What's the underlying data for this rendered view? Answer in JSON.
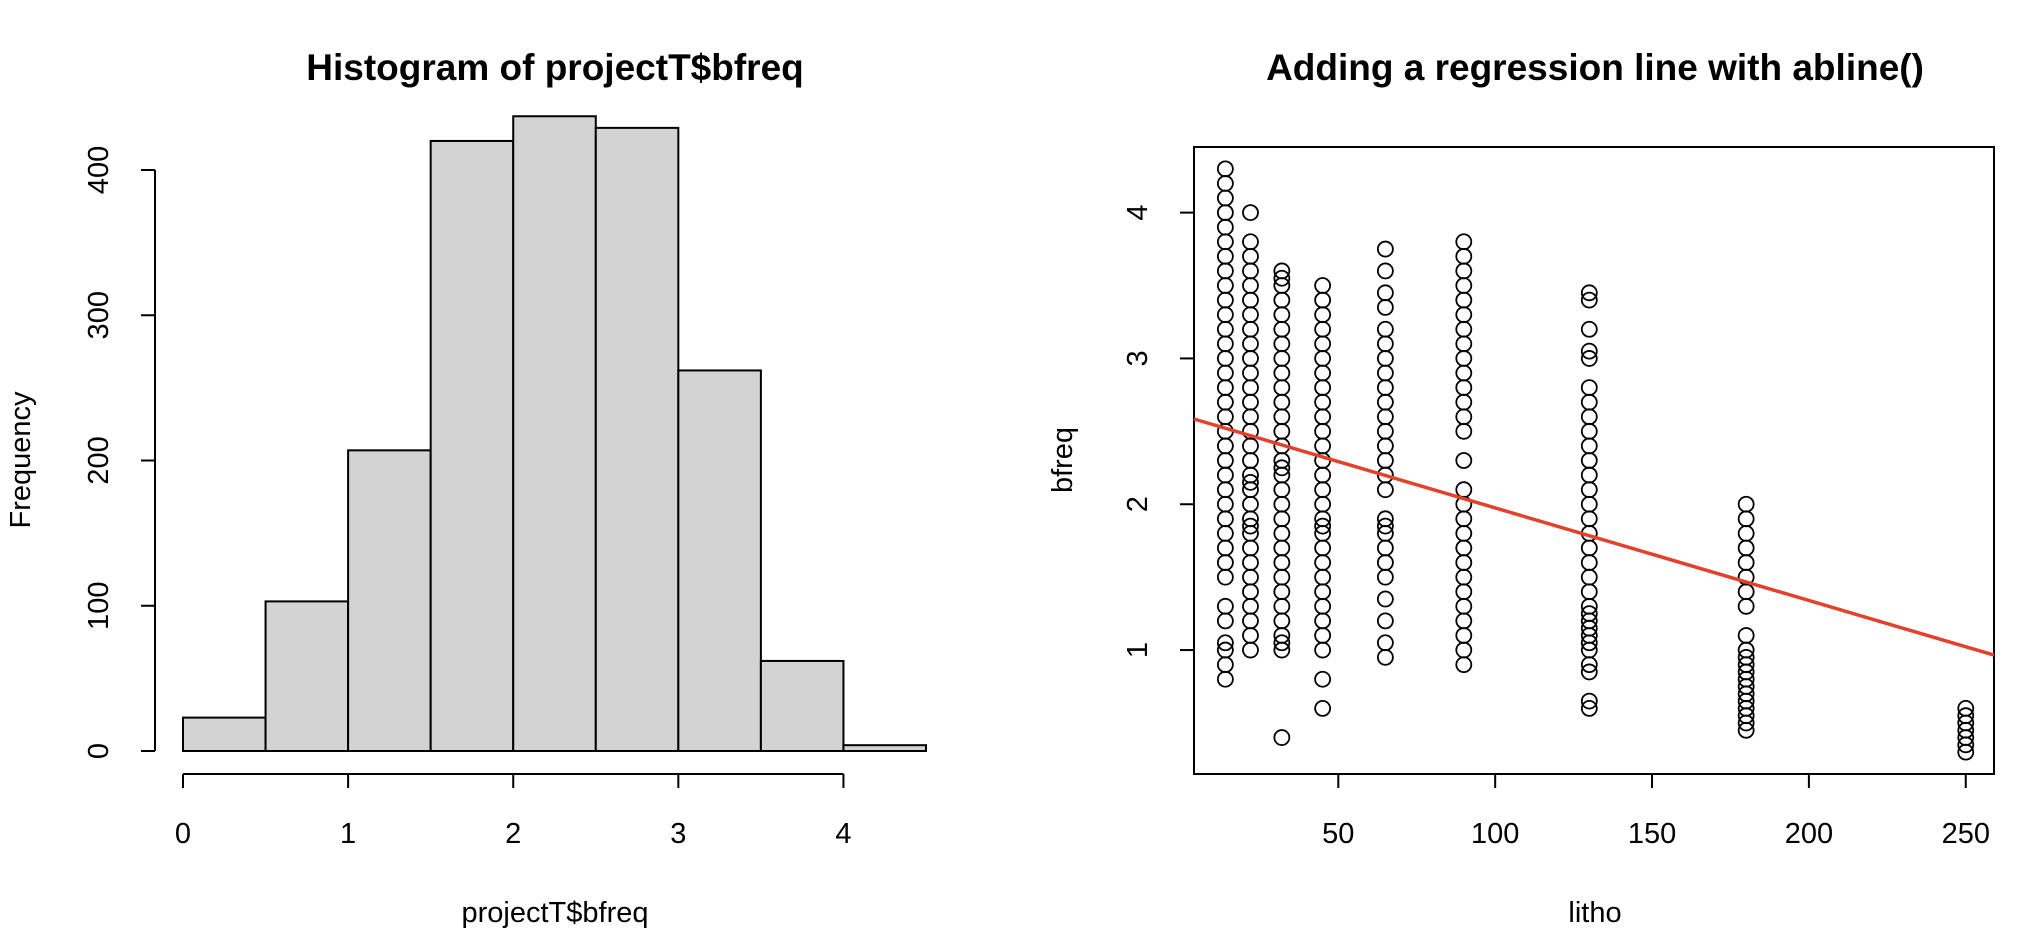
{
  "chart_data": [
    {
      "type": "bar",
      "title": "Histogram of projectT$bfreq",
      "xlabel": "projectT$bfreq",
      "ylabel": "Frequency",
      "bin_edges": [
        0,
        0.5,
        1,
        1.5,
        2,
        2.5,
        3,
        3.5,
        4,
        4.5
      ],
      "values": [
        23,
        103,
        207,
        420,
        437,
        429,
        262,
        62,
        4
      ],
      "xticks": [
        0,
        1,
        2,
        3,
        4
      ],
      "yticks": [
        0,
        100,
        200,
        300,
        400
      ],
      "xlim": [
        0,
        4.5
      ],
      "ylim": [
        0,
        437
      ],
      "bar_color": "#d3d3d3",
      "grid": false
    },
    {
      "type": "scatter",
      "title": "Adding a regression line with abline()",
      "xlabel": "litho",
      "ylabel": "bfreq",
      "xticks": [
        50,
        100,
        150,
        200,
        250
      ],
      "yticks": [
        1,
        2,
        3,
        4
      ],
      "xlim": [
        4,
        259
      ],
      "ylim": [
        0.15,
        4.45
      ],
      "groups": [
        {
          "x": 14,
          "y": [
            0.8,
            0.9,
            1.0,
            1.05,
            1.2,
            1.3,
            1.5,
            1.6,
            1.7,
            1.8,
            1.9,
            2.0,
            2.1,
            2.2,
            2.3,
            2.4,
            2.5,
            2.6,
            2.7,
            2.8,
            2.9,
            3.0,
            3.1,
            3.2,
            3.3,
            3.4,
            3.5,
            3.6,
            3.7,
            3.8,
            3.9,
            4.0,
            4.1,
            4.2,
            4.3
          ]
        },
        {
          "x": 22,
          "y": [
            1.0,
            1.1,
            1.2,
            1.3,
            1.4,
            1.5,
            1.6,
            1.7,
            1.8,
            1.85,
            1.9,
            2.0,
            2.1,
            2.15,
            2.2,
            2.3,
            2.4,
            2.5,
            2.6,
            2.7,
            2.8,
            2.9,
            3.0,
            3.1,
            3.2,
            3.3,
            3.4,
            3.5,
            3.6,
            3.7,
            3.8,
            4.0
          ]
        },
        {
          "x": 32,
          "y": [
            0.4,
            1.0,
            1.05,
            1.1,
            1.2,
            1.3,
            1.4,
            1.5,
            1.6,
            1.7,
            1.8,
            1.9,
            2.0,
            2.1,
            2.2,
            2.25,
            2.3,
            2.4,
            2.5,
            2.6,
            2.7,
            2.8,
            2.9,
            3.0,
            3.1,
            3.2,
            3.3,
            3.4,
            3.5,
            3.55,
            3.6
          ]
        },
        {
          "x": 45,
          "y": [
            0.6,
            0.8,
            1.0,
            1.1,
            1.2,
            1.3,
            1.4,
            1.5,
            1.6,
            1.7,
            1.8,
            1.85,
            1.9,
            2.0,
            2.1,
            2.2,
            2.3,
            2.4,
            2.5,
            2.6,
            2.7,
            2.8,
            2.9,
            3.0,
            3.1,
            3.2,
            3.3,
            3.4,
            3.5
          ]
        },
        {
          "x": 65,
          "y": [
            0.95,
            1.05,
            1.2,
            1.35,
            1.5,
            1.6,
            1.7,
            1.8,
            1.85,
            1.9,
            2.1,
            2.2,
            2.3,
            2.4,
            2.5,
            2.6,
            2.7,
            2.8,
            2.9,
            3.0,
            3.1,
            3.2,
            3.35,
            3.45,
            3.6,
            3.75
          ]
        },
        {
          "x": 90,
          "y": [
            0.9,
            1.0,
            1.1,
            1.2,
            1.3,
            1.4,
            1.5,
            1.6,
            1.7,
            1.8,
            1.9,
            2.0,
            2.1,
            2.3,
            2.5,
            2.6,
            2.7,
            2.8,
            2.9,
            3.0,
            3.1,
            3.2,
            3.3,
            3.4,
            3.5,
            3.6,
            3.7,
            3.8
          ]
        },
        {
          "x": 130,
          "y": [
            0.6,
            0.65,
            0.85,
            0.9,
            1.0,
            1.05,
            1.1,
            1.15,
            1.2,
            1.25,
            1.3,
            1.4,
            1.5,
            1.6,
            1.7,
            1.8,
            1.9,
            2.0,
            2.1,
            2.2,
            2.3,
            2.4,
            2.5,
            2.6,
            2.7,
            2.8,
            3.0,
            3.05,
            3.2,
            3.4,
            3.45
          ]
        },
        {
          "x": 180,
          "y": [
            0.45,
            0.5,
            0.55,
            0.6,
            0.65,
            0.7,
            0.75,
            0.8,
            0.85,
            0.9,
            0.95,
            1.0,
            1.1,
            1.3,
            1.4,
            1.5,
            1.6,
            1.7,
            1.8,
            1.9,
            2.0
          ]
        },
        {
          "x": 250,
          "y": [
            0.3,
            0.35,
            0.4,
            0.45,
            0.5,
            0.55,
            0.6
          ]
        }
      ],
      "regression_line": {
        "intercept": 2.61,
        "slope": -0.00635,
        "color": "#e2412b"
      },
      "grid": false
    }
  ]
}
